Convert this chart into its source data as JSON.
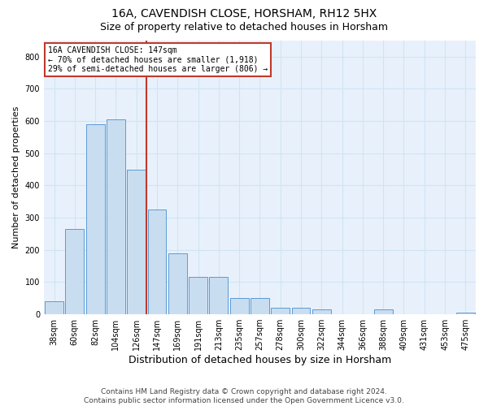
{
  "title": "16A, CAVENDISH CLOSE, HORSHAM, RH12 5HX",
  "subtitle": "Size of property relative to detached houses in Horsham",
  "xlabel": "Distribution of detached houses by size in Horsham",
  "ylabel": "Number of detached properties",
  "footer_line1": "Contains HM Land Registry data © Crown copyright and database right 2024.",
  "footer_line2": "Contains public sector information licensed under the Open Government Licence v3.0.",
  "annotation_line1": "16A CAVENDISH CLOSE: 147sqm",
  "annotation_line2": "← 70% of detached houses are smaller (1,918)",
  "annotation_line3": "29% of semi-detached houses are larger (806) →",
  "bar_color": "#c9ddf0",
  "bar_edge_color": "#5b9bd5",
  "vline_color": "#c0392b",
  "categories": [
    "38sqm",
    "60sqm",
    "82sqm",
    "104sqm",
    "126sqm",
    "147sqm",
    "169sqm",
    "191sqm",
    "213sqm",
    "235sqm",
    "257sqm",
    "278sqm",
    "300sqm",
    "322sqm",
    "344sqm",
    "366sqm",
    "388sqm",
    "409sqm",
    "431sqm",
    "453sqm",
    "475sqm"
  ],
  "values": [
    40,
    265,
    590,
    605,
    450,
    325,
    190,
    115,
    115,
    50,
    50,
    20,
    20,
    15,
    0,
    0,
    15,
    0,
    0,
    0,
    5
  ],
  "vline_index": 5,
  "ylim": [
    0,
    850
  ],
  "yticks": [
    0,
    100,
    200,
    300,
    400,
    500,
    600,
    700,
    800
  ],
  "grid_color": "#d0e4f5",
  "background_color": "#e8f1fb",
  "title_fontsize": 10,
  "subtitle_fontsize": 9,
  "ylabel_fontsize": 8,
  "xlabel_fontsize": 9,
  "tick_fontsize": 7,
  "annotation_fontsize": 7,
  "footer_fontsize": 6.5
}
